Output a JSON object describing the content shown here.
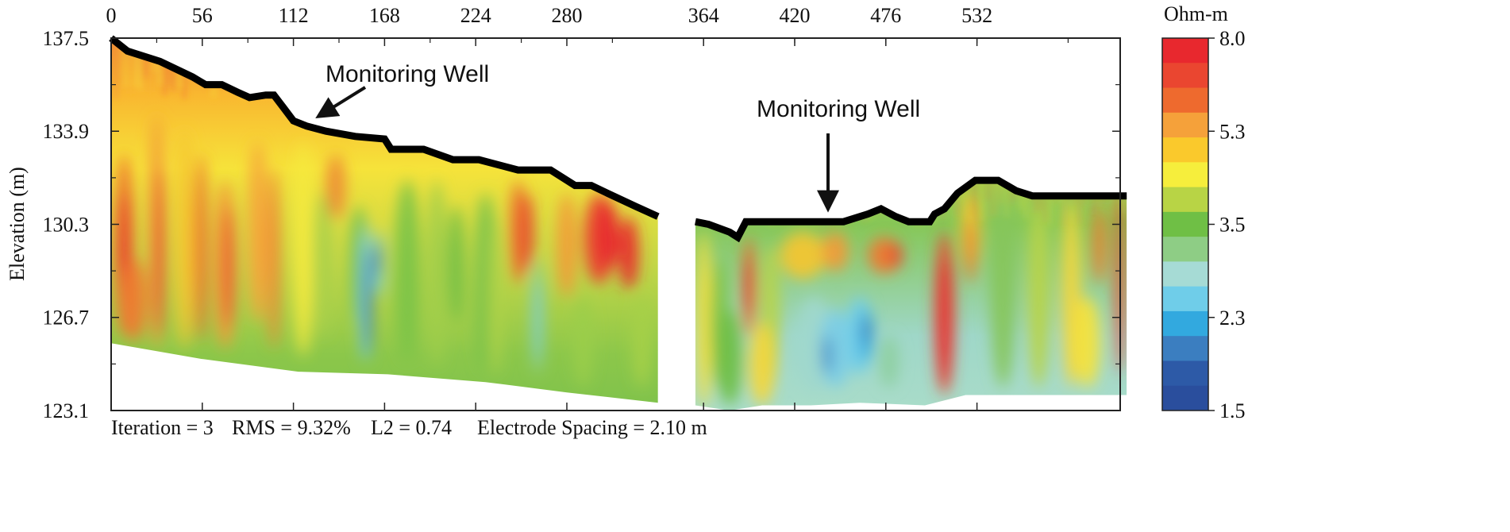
{
  "chart_data": {
    "type": "heatmap",
    "title": "",
    "ylabel": "Elevation (m)",
    "xlim": [
      0,
      620
    ],
    "ylim": [
      123.1,
      137.5
    ],
    "x_ticks": [
      0,
      56,
      112,
      168,
      224,
      280,
      364,
      420,
      476,
      532
    ],
    "y_ticks": [
      "137.5",
      "133.9",
      "130.3",
      "126.7",
      "123.1"
    ],
    "colorbar": {
      "unit": "Ohm-m",
      "min": 1.5,
      "max": 8.0,
      "ticks": [
        "8.0",
        "5.3",
        "3.5",
        "2.3",
        "1.5"
      ],
      "colors": [
        "#e8282e",
        "#ea4630",
        "#ee6a2e",
        "#f5a13a",
        "#fac92c",
        "#f6ee3c",
        "#b8d445",
        "#6fbf45",
        "#8ecd85",
        "#a6dbd5",
        "#6fcde9",
        "#32a9df",
        "#3b7ec0",
        "#2d5aa7",
        "#2a4e9d"
      ]
    },
    "sections": [
      {
        "name": "line-1",
        "x_range": [
          0,
          336
        ],
        "surface": [
          [
            0,
            137.5
          ],
          [
            10,
            137.0
          ],
          [
            30,
            136.6
          ],
          [
            50,
            136.0
          ],
          [
            58,
            135.7
          ],
          [
            68,
            135.7
          ],
          [
            78,
            135.4
          ],
          [
            85,
            135.2
          ],
          [
            95,
            135.3
          ],
          [
            100,
            135.3
          ],
          [
            106,
            134.8
          ],
          [
            112,
            134.3
          ],
          [
            120,
            134.1
          ],
          [
            132,
            133.9
          ],
          [
            150,
            133.7
          ],
          [
            168,
            133.6
          ],
          [
            172,
            133.2
          ],
          [
            192,
            133.2
          ],
          [
            210,
            132.8
          ],
          [
            226,
            132.8
          ],
          [
            250,
            132.4
          ],
          [
            270,
            132.4
          ],
          [
            280,
            132.0
          ],
          [
            285,
            131.8
          ],
          [
            295,
            131.8
          ],
          [
            305,
            131.5
          ],
          [
            322,
            131.0
          ],
          [
            336,
            130.6
          ]
        ],
        "bottom": [
          [
            0,
            125.7
          ],
          [
            55,
            125.1
          ],
          [
            115,
            124.6
          ],
          [
            170,
            124.5
          ],
          [
            230,
            124.2
          ],
          [
            280,
            123.8
          ],
          [
            336,
            123.4
          ]
        ]
      },
      {
        "name": "line-2",
        "x_range": [
          359,
          624
        ],
        "surface": [
          [
            359,
            130.4
          ],
          [
            367,
            130.3
          ],
          [
            380,
            130.0
          ],
          [
            385,
            129.8
          ],
          [
            390,
            130.4
          ],
          [
            410,
            130.4
          ],
          [
            450,
            130.4
          ],
          [
            465,
            130.7
          ],
          [
            473,
            130.9
          ],
          [
            482,
            130.6
          ],
          [
            490,
            130.4
          ],
          [
            503,
            130.4
          ],
          [
            506,
            130.7
          ],
          [
            512,
            130.9
          ],
          [
            520,
            131.5
          ],
          [
            531,
            132.0
          ],
          [
            545,
            132.0
          ],
          [
            556,
            131.6
          ],
          [
            566,
            131.4
          ],
          [
            624,
            131.4
          ]
        ],
        "bottom": [
          [
            359,
            123.3
          ],
          [
            380,
            123.1
          ],
          [
            400,
            123.3
          ],
          [
            430,
            123.3
          ],
          [
            460,
            123.4
          ],
          [
            500,
            123.3
          ],
          [
            525,
            123.7
          ],
          [
            560,
            123.7
          ],
          [
            624,
            123.7
          ]
        ]
      }
    ],
    "annotations": [
      {
        "text": "Monitoring Well",
        "x": 117,
        "y": 134.3
      },
      {
        "text": "Monitoring Well",
        "x": 414,
        "y": 130.5
      }
    ]
  },
  "footer": {
    "iteration": "Iteration = 3",
    "rms": "RMS = 9.32%",
    "l2": "L2 = 0.74",
    "spacing": "Electrode Spacing = 2.10 m"
  }
}
